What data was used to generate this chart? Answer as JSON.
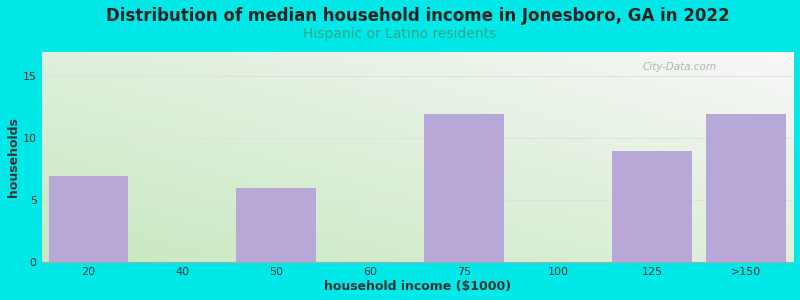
{
  "title": "Distribution of median household income in Jonesboro, GA in 2022",
  "subtitle": "Hispanic or Latino residents",
  "xlabel": "household income ($1000)",
  "ylabel": "households",
  "bar_labels": [
    "20",
    "40",
    "50",
    "60",
    "75",
    "100",
    "125",
    ">150"
  ],
  "bar_values": [
    7,
    0,
    6,
    0,
    12,
    0,
    9,
    12
  ],
  "bar_positions": [
    0,
    1,
    2,
    3,
    4,
    5,
    6,
    7
  ],
  "bar_color": "#b8a8d8",
  "ylim": [
    0,
    17
  ],
  "yticks": [
    0,
    5,
    10,
    15
  ],
  "background_color": "#00e8e8",
  "plot_bg_left_bottom": "#c8e8c0",
  "plot_bg_right_top": "#f8f8f8",
  "title_fontsize": 12,
  "subtitle_fontsize": 10,
  "subtitle_color": "#2aaa88",
  "axis_label_fontsize": 9,
  "tick_fontsize": 8,
  "watermark": "City-Data.com",
  "gridline_color": "#e0e0e0"
}
